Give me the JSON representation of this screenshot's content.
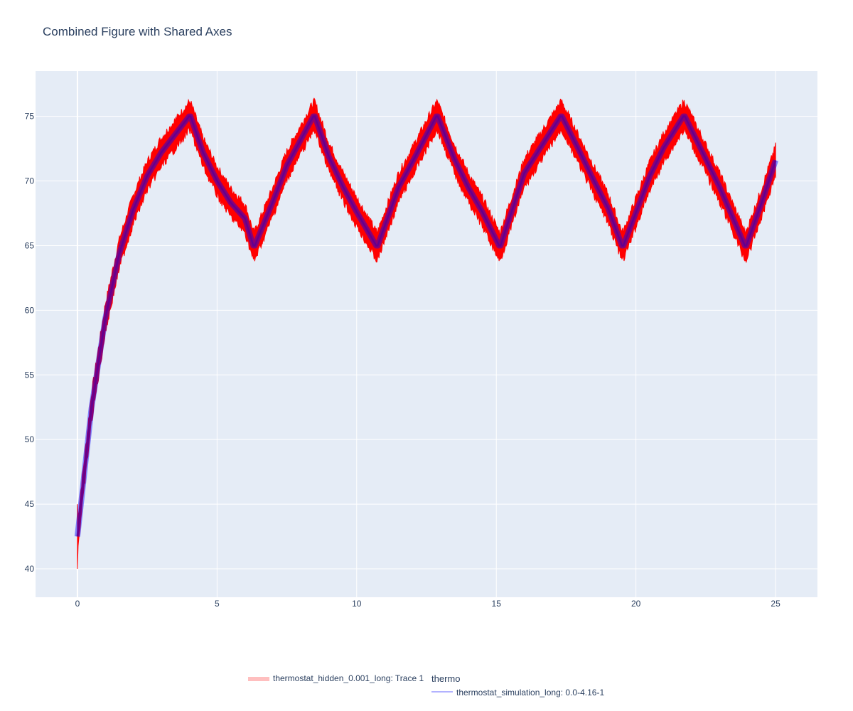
{
  "chart_data": {
    "type": "line",
    "title": "Combined Figure with Shared Axes",
    "xlabel": "",
    "ylabel": "",
    "xlim": [
      -1.5,
      26.5
    ],
    "ylim": [
      37.8,
      78.5
    ],
    "x_ticks": [
      0,
      5,
      10,
      15,
      20,
      25
    ],
    "y_ticks": [
      40,
      45,
      50,
      55,
      60,
      65,
      70,
      75
    ],
    "grid": true,
    "legend": {
      "placement": "bottom-center",
      "groups": [
        {
          "title": "",
          "entries": [
            {
              "name": "thermostat_hidden_0.001_long: Trace 1",
              "color": "#ff0000",
              "style": "band"
            }
          ]
        },
        {
          "title": "thermo",
          "entries": [
            {
              "name": "thermostat_simulation_long: 0.0-4.16-1",
              "color": "#0000ff",
              "style": "line"
            }
          ]
        }
      ]
    },
    "series": [
      {
        "name": "thermostat_hidden_0.001_long: Trace 1",
        "kind": "noisy-band",
        "color": "#ff0000",
        "band_halfwidth": 1.0,
        "x": [
          0,
          0.5,
          1,
          1.5,
          2,
          2.5,
          3,
          3.5,
          4.0,
          4.05,
          4.5,
          5,
          5.5,
          6,
          6.3,
          6.35,
          7,
          7.5,
          8,
          8.45,
          8.5,
          9,
          9.5,
          10,
          10.7,
          10.75,
          11.5,
          12,
          12.85,
          12.9,
          13.5,
          14,
          14.5,
          15.1,
          15.15,
          16,
          16.5,
          17.3,
          17.35,
          18,
          18.5,
          19,
          19.5,
          19.55,
          20.5,
          21,
          21.7,
          21.75,
          22.5,
          23,
          23.9,
          23.95,
          24.5,
          25.0
        ],
        "y": [
          42.5,
          52.4,
          59.4,
          64.4,
          67.8,
          70.4,
          72.2,
          73.6,
          75.0,
          75.0,
          72.2,
          70.0,
          68.3,
          67.1,
          65.0,
          65.0,
          68.4,
          71.2,
          73.2,
          75.0,
          75.0,
          71.9,
          69.6,
          67.6,
          65.0,
          65.0,
          69.5,
          71.5,
          75.0,
          75.0,
          71.7,
          69.5,
          67.6,
          65.0,
          65.0,
          70.6,
          72.3,
          75.0,
          75.0,
          72.2,
          70.0,
          67.9,
          65.0,
          65.0,
          70.4,
          72.6,
          75.0,
          75.0,
          71.7,
          69.5,
          65.0,
          65.0,
          68.3,
          71.6
        ]
      },
      {
        "name": "thermostat_simulation_long: 0.0-4.16-1",
        "kind": "line",
        "color": "#0000ff",
        "x": [
          0,
          0.5,
          1,
          1.5,
          2,
          2.5,
          3,
          3.5,
          4.0,
          4.05,
          4.5,
          5,
          5.5,
          6,
          6.3,
          6.35,
          7,
          7.5,
          8,
          8.45,
          8.5,
          9,
          9.5,
          10,
          10.7,
          10.75,
          11.5,
          12,
          12.85,
          12.9,
          13.5,
          14,
          14.5,
          15.1,
          15.15,
          16,
          16.5,
          17.3,
          17.35,
          18,
          18.5,
          19,
          19.5,
          19.55,
          20.5,
          21,
          21.7,
          21.75,
          22.5,
          23,
          23.9,
          23.95,
          24.5,
          25.0
        ],
        "y": [
          42.5,
          52.4,
          59.4,
          64.4,
          67.8,
          70.4,
          72.2,
          73.6,
          75.0,
          75.0,
          72.2,
          70.0,
          68.3,
          67.1,
          65.0,
          65.0,
          68.4,
          71.2,
          73.2,
          75.0,
          75.0,
          71.9,
          69.6,
          67.6,
          65.0,
          65.0,
          69.5,
          71.5,
          75.0,
          75.0,
          71.7,
          69.5,
          67.6,
          65.0,
          65.0,
          70.6,
          72.3,
          75.0,
          75.0,
          72.2,
          70.0,
          67.9,
          65.0,
          65.0,
          70.4,
          72.6,
          75.0,
          75.0,
          71.7,
          69.5,
          65.0,
          65.0,
          68.3,
          71.6
        ]
      }
    ]
  },
  "colors": {
    "plot_background": "#e5ecf6",
    "grid": "#ffffff",
    "text": "#2a3f5f"
  }
}
